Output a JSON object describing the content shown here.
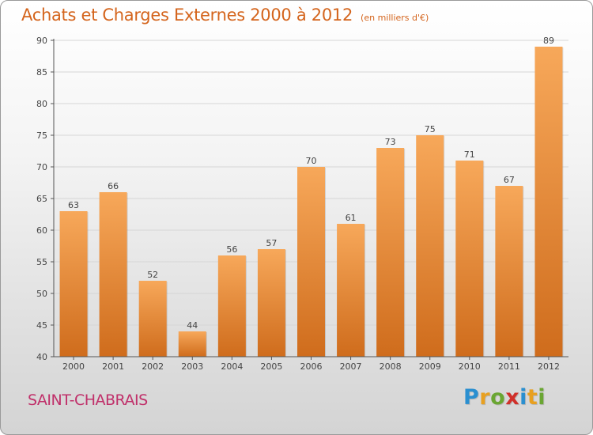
{
  "header": {
    "title": "Achats et Charges Externes 2000 à 2012",
    "subtitle": "(en milliers d'€)"
  },
  "footer": {
    "commune": "SAINT-CHABRAIS",
    "brand_letters": [
      {
        "char": "P",
        "color": "#2a8fd0"
      },
      {
        "char": "r",
        "color": "#e8a020"
      },
      {
        "char": "o",
        "color": "#6aa632"
      },
      {
        "char": "x",
        "color": "#d0302a"
      },
      {
        "char": "i",
        "color": "#2a8fd0"
      },
      {
        "char": "t",
        "color": "#e8a020"
      },
      {
        "char": "i",
        "color": "#6aa632"
      }
    ]
  },
  "colors": {
    "bar_top": "#f7a85a",
    "bar_bottom": "#cf6c1c",
    "title": "#d4641c",
    "commune": "#c0306a",
    "grid": "#d6d6d6",
    "axis": "#555555"
  },
  "chart_data": {
    "type": "bar",
    "categories": [
      "2000",
      "2001",
      "2002",
      "2003",
      "2004",
      "2005",
      "2006",
      "2007",
      "2008",
      "2009",
      "2010",
      "2011",
      "2012"
    ],
    "values": [
      63,
      66,
      52,
      44,
      56,
      57,
      70,
      61,
      73,
      75,
      71,
      67,
      89
    ],
    "ylim": [
      40,
      90
    ],
    "yticks": [
      40,
      45,
      50,
      55,
      60,
      65,
      70,
      75,
      80,
      85,
      90
    ],
    "grid": true,
    "data_labels": true
  }
}
